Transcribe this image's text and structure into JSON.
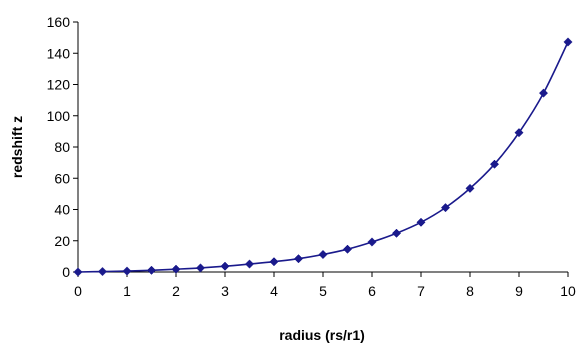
{
  "chart_data": {
    "type": "line",
    "xlabel": "radius (rs/r1)",
    "ylabel": "redshift z",
    "xlim": [
      0,
      10
    ],
    "ylim": [
      0,
      160
    ],
    "x_ticks": [
      0,
      1,
      2,
      3,
      4,
      5,
      6,
      7,
      8,
      9,
      10
    ],
    "y_ticks": [
      0,
      20,
      40,
      60,
      80,
      100,
      120,
      140,
      160
    ],
    "grid": false,
    "legend": "none",
    "marker": "diamond",
    "line_color": "#1a1a8c",
    "series": [
      {
        "x": [
          0,
          0.5,
          1,
          1.5,
          2,
          2.5,
          3,
          3.5,
          4,
          4.5,
          5,
          5.5,
          6,
          6.5,
          7,
          7.5,
          8,
          8.5,
          9,
          9.5,
          10
        ],
        "values": [
          0,
          0.3,
          0.6,
          1.1,
          1.8,
          2.6,
          3.7,
          5.1,
          6.6,
          8.5,
          11.2,
          14.6,
          19.2,
          24.8,
          31.8,
          41.2,
          53.5,
          69.0,
          89.2,
          114.5,
          147.2
        ]
      }
    ]
  }
}
